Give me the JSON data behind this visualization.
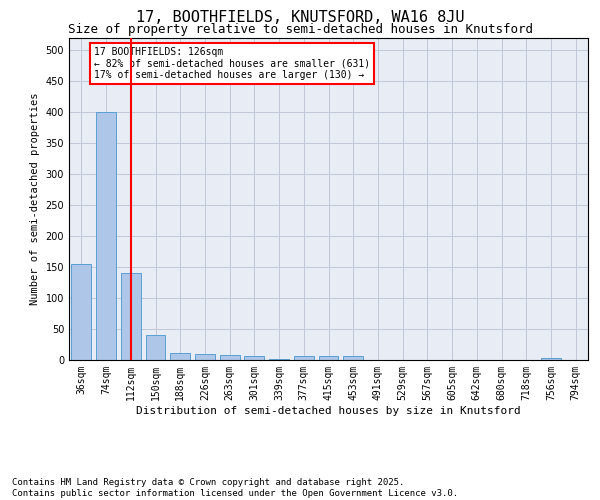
{
  "title_line1": "17, BOOTHFIELDS, KNUTSFORD, WA16 8JU",
  "title_line2": "Size of property relative to semi-detached houses in Knutsford",
  "xlabel": "Distribution of semi-detached houses by size in Knutsford",
  "ylabel": "Number of semi-detached properties",
  "categories": [
    "36sqm",
    "74sqm",
    "112sqm",
    "150sqm",
    "188sqm",
    "226sqm",
    "263sqm",
    "301sqm",
    "339sqm",
    "377sqm",
    "415sqm",
    "453sqm",
    "491sqm",
    "529sqm",
    "567sqm",
    "605sqm",
    "642sqm",
    "680sqm",
    "718sqm",
    "756sqm",
    "794sqm"
  ],
  "values": [
    155,
    400,
    140,
    40,
    12,
    9,
    8,
    6,
    1,
    7,
    6,
    6,
    0,
    0,
    0,
    0,
    0,
    0,
    0,
    3,
    0
  ],
  "bar_color": "#aec6e8",
  "bar_edge_color": "#5a9fd4",
  "vline_x_index": 2,
  "vline_color": "red",
  "annotation_text": "17 BOOTHFIELDS: 126sqm\n← 82% of semi-detached houses are smaller (631)\n17% of semi-detached houses are larger (130) →",
  "annotation_box_color": "white",
  "annotation_edge_color": "red",
  "ylim": [
    0,
    520
  ],
  "yticks": [
    0,
    50,
    100,
    150,
    200,
    250,
    300,
    350,
    400,
    450,
    500
  ],
  "grid_color": "#c0c8d8",
  "background_color": "#e8edf5",
  "footer": "Contains HM Land Registry data © Crown copyright and database right 2025.\nContains public sector information licensed under the Open Government Licence v3.0.",
  "title_fontsize": 11,
  "subtitle_fontsize": 9,
  "annotation_fontsize": 7,
  "footer_fontsize": 6.5,
  "ylabel_fontsize": 7.5,
  "xlabel_fontsize": 8,
  "tick_fontsize": 7
}
